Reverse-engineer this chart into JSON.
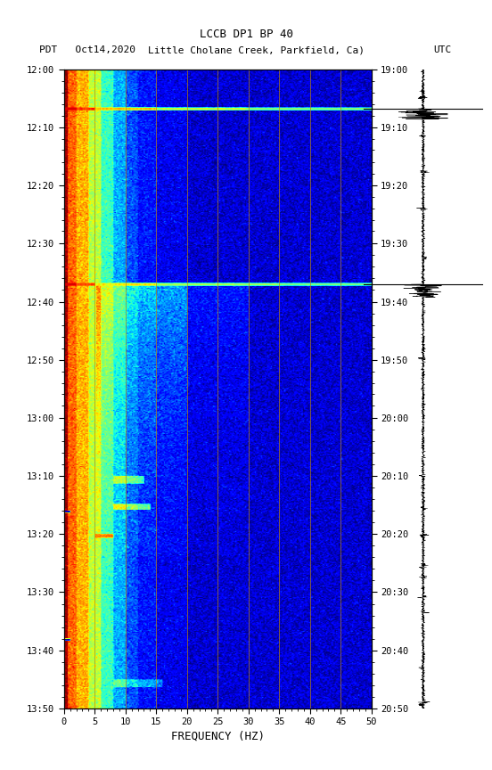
{
  "title_line1": "LCCB DP1 BP 40",
  "title_line2_left": "PDT   Oct14,2020",
  "title_line2_center": "Little Cholane Creek, Parkfield, Ca)",
  "title_line2_right": "UTC",
  "xlabel": "FREQUENCY (HZ)",
  "freq_min": 0,
  "freq_max": 50,
  "duration_minutes": 110,
  "freq_ticks": [
    0,
    5,
    10,
    15,
    20,
    25,
    30,
    35,
    40,
    45,
    50
  ],
  "pdt_ticks": [
    "12:00",
    "12:10",
    "12:20",
    "12:30",
    "12:40",
    "12:50",
    "13:00",
    "13:10",
    "13:20",
    "13:30",
    "13:40",
    "13:50"
  ],
  "utc_ticks": [
    "19:00",
    "19:10",
    "19:20",
    "19:30",
    "19:40",
    "19:50",
    "20:00",
    "20:10",
    "20:20",
    "20:30",
    "20:40",
    "20:50"
  ],
  "vertical_lines_freq": [
    5,
    10,
    15,
    20,
    25,
    30,
    35,
    40,
    45
  ],
  "bg_color": "white",
  "colormap": "jet",
  "seismogram_color": "black",
  "event1_minute": 7,
  "event2_minute": 37,
  "event1_utc_minute": 7,
  "event2_utc_minute": 37
}
